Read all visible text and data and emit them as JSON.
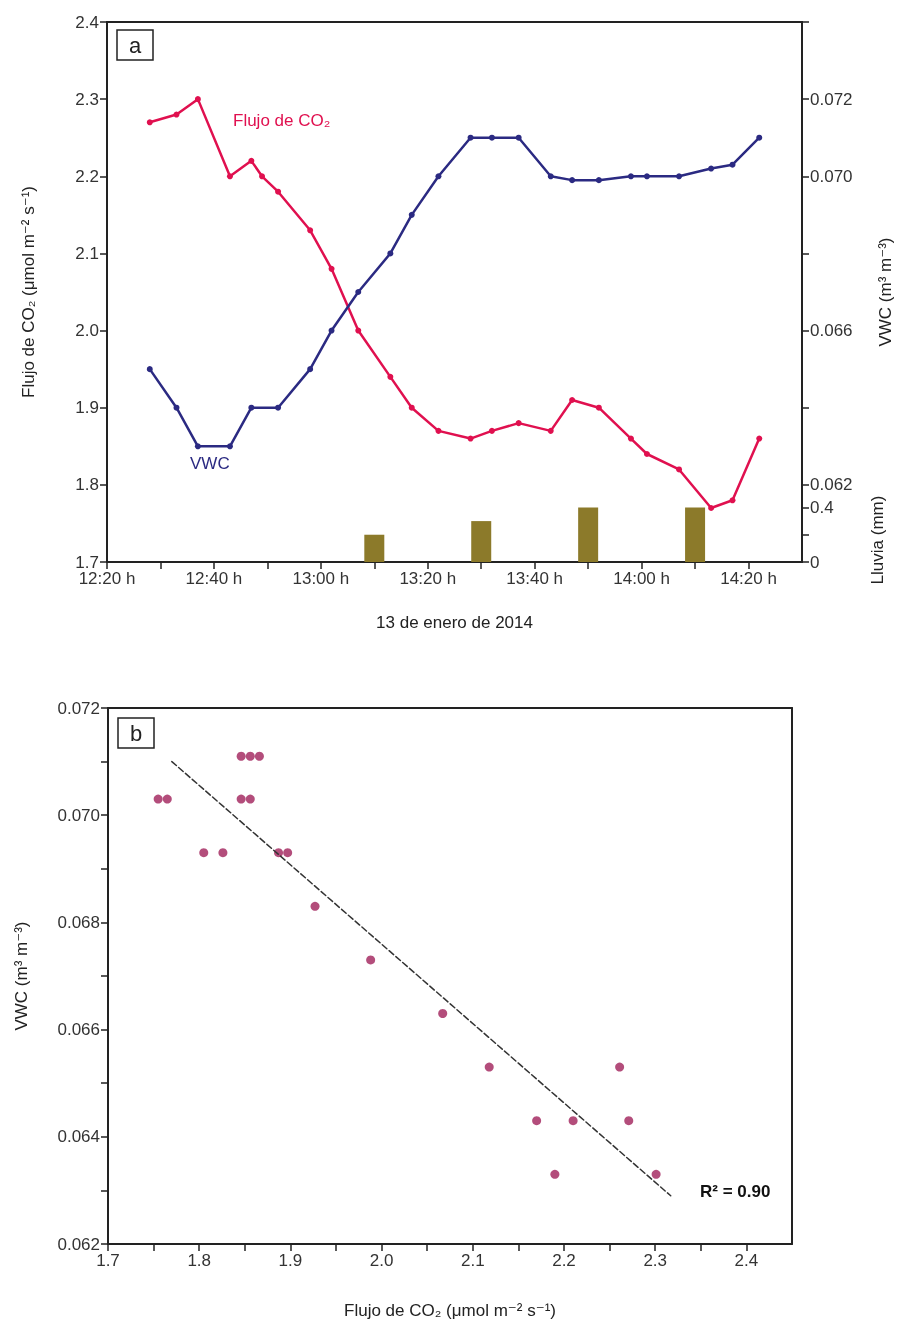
{
  "chart_data": [
    {
      "type": "line",
      "xlabel": "13 de enero de 2014",
      "ylabel": "Flujo de CO₂ (μmol m⁻² s⁻¹)",
      "y2label": "VWC (m³ m⁻³)",
      "y3label": "Lluvia (mm)",
      "annotations": [
        "a"
      ],
      "marker": "circle",
      "xlim": [
        "2014-01-13T12:20",
        "2014-01-13T14:30"
      ],
      "xticks": [
        {
          "value": "2014-01-13T12:20",
          "label": "12:20 h"
        },
        {
          "value": "2014-01-13T12:30",
          "label": null
        },
        {
          "value": "2014-01-13T12:40",
          "label": "12:40 h"
        },
        {
          "value": "2014-01-13T12:50",
          "label": null
        },
        {
          "value": "2014-01-13T13:00",
          "label": "13:00 h"
        },
        {
          "value": "2014-01-13T13:10",
          "label": null
        },
        {
          "value": "2014-01-13T13:20",
          "label": "13:20 h"
        },
        {
          "value": "2014-01-13T13:30",
          "label": null
        },
        {
          "value": "2014-01-13T13:40",
          "label": "13:40 h"
        },
        {
          "value": "2014-01-13T13:50",
          "label": null
        },
        {
          "value": "2014-01-13T14:00",
          "label": "14:00 h"
        },
        {
          "value": "2014-01-13T14:10",
          "label": null
        },
        {
          "value": "2014-01-13T14:20",
          "label": "14:20 h"
        }
      ],
      "ylim": [
        1.7,
        2.4
      ],
      "yticks": [
        1.7,
        1.8,
        1.9,
        {
          "value": 2,
          "label": "2.0"
        },
        2.1,
        2.2,
        2.3,
        2.4
      ],
      "y2lim": [
        0.06,
        0.074
      ],
      "y2ticks": [
        0.062,
        {
          "value": 0.064,
          "label": null
        },
        0.066,
        {
          "value": 0.068,
          "label": null
        },
        {
          "value": 0.07,
          "label": "0.070"
        },
        0.072,
        {
          "value": 0.074,
          "label": null
        }
      ],
      "y3lim": [
        0,
        3.96
      ],
      "y3ticks": [
        0,
        {
          "value": 0.2,
          "label": null
        },
        0.4
      ],
      "series": [
        {
          "name": "Flujo de CO₂",
          "color": "#e0104f",
          "x": [
            "2014-01-13T12:28",
            "2014-01-13T12:33",
            "2014-01-13T12:37",
            "2014-01-13T12:43",
            "2014-01-13T12:47",
            "2014-01-13T12:49",
            "2014-01-13T12:52",
            "2014-01-13T12:58",
            "2014-01-13T13:02",
            "2014-01-13T13:07",
            "2014-01-13T13:13",
            "2014-01-13T13:17",
            "2014-01-13T13:22",
            "2014-01-13T13:28",
            "2014-01-13T13:32",
            "2014-01-13T13:37",
            "2014-01-13T13:43",
            "2014-01-13T13:47",
            "2014-01-13T13:52",
            "2014-01-13T13:58",
            "2014-01-13T14:01",
            "2014-01-13T14:07",
            "2014-01-13T14:13",
            "2014-01-13T14:17",
            "2014-01-13T14:22"
          ],
          "values": [
            2.27,
            2.28,
            2.3,
            2.2,
            2.22,
            2.2,
            2.18,
            2.13,
            2.08,
            2.0,
            1.94,
            1.9,
            1.87,
            1.86,
            1.87,
            1.88,
            1.87,
            1.91,
            1.9,
            1.86,
            1.84,
            1.82,
            1.77,
            1.78,
            1.86
          ]
        },
        {
          "name": "VWC",
          "axis": "y2",
          "color": "#2b2a82",
          "x": [
            "2014-01-13T12:28",
            "2014-01-13T12:33",
            "2014-01-13T12:37",
            "2014-01-13T12:43",
            "2014-01-13T12:47",
            "2014-01-13T12:52",
            "2014-01-13T12:58",
            "2014-01-13T13:02",
            "2014-01-13T13:07",
            "2014-01-13T13:13",
            "2014-01-13T13:17",
            "2014-01-13T13:22",
            "2014-01-13T13:28",
            "2014-01-13T13:32",
            "2014-01-13T13:37",
            "2014-01-13T13:43",
            "2014-01-13T13:47",
            "2014-01-13T13:52",
            "2014-01-13T13:58",
            "2014-01-13T14:01",
            "2014-01-13T14:07",
            "2014-01-13T14:13",
            "2014-01-13T14:17",
            "2014-01-13T14:22"
          ],
          "values": [
            0.065,
            0.064,
            0.063,
            0.063,
            0.064,
            0.064,
            0.065,
            0.066,
            0.067,
            0.068,
            0.069,
            0.07,
            0.071,
            0.071,
            0.071,
            0.07,
            0.0699,
            0.0699,
            0.07,
            0.07,
            0.07,
            0.0702,
            0.0703,
            0.071
          ]
        },
        {
          "type": "bar",
          "axis": "y3",
          "color": "#8c7a2a",
          "x": [
            "2014-01-13T13:10",
            "2014-01-13T13:30",
            "2014-01-13T13:50",
            "2014-01-13T14:10"
          ],
          "values": [
            0.2,
            0.3,
            0.4,
            0.4
          ]
        }
      ]
    },
    {
      "type": "scatter",
      "xlabel": "Flujo de CO₂ (μmol m⁻² s⁻¹)",
      "ylabel": "VWC (m³ m⁻³)",
      "annotations": [
        "b",
        "R² = 0.90"
      ],
      "marker": "circle",
      "xlim": [
        1.7,
        2.45
      ],
      "xticks": [
        1.7,
        {
          "value": 1.75,
          "label": null
        },
        1.8,
        {
          "value": 1.85,
          "label": null
        },
        1.9,
        {
          "value": 1.95,
          "label": null
        },
        {
          "value": 2,
          "label": "2.0"
        },
        {
          "value": 2.05,
          "label": null
        },
        2.1,
        {
          "value": 2.15,
          "label": null
        },
        2.2,
        {
          "value": 2.25,
          "label": null
        },
        2.3,
        {
          "value": 2.35,
          "label": null
        },
        2.4
      ],
      "ylim": [
        0.062,
        0.072
      ],
      "yticks": [
        0.062,
        {
          "value": 0.063,
          "label": null
        },
        0.064,
        {
          "value": 0.065,
          "label": null
        },
        0.066,
        {
          "value": 0.067,
          "label": null
        },
        0.068,
        {
          "value": 0.069,
          "label": null
        },
        {
          "value": 0.07,
          "label": "0.070"
        },
        {
          "value": 0.071,
          "label": null
        },
        0.072
      ],
      "series": [
        {
          "color": "#a0205a",
          "x": [
            1.846,
            1.856,
            1.866,
            1.755,
            1.765,
            1.846,
            1.856,
            1.805,
            1.826,
            1.887,
            1.897,
            1.927,
            1.988,
            2.067,
            2.118,
            2.261,
            2.17,
            2.21,
            2.271,
            2.19,
            2.301
          ],
          "values": [
            0.0711,
            0.0711,
            0.0711,
            0.0703,
            0.0703,
            0.0703,
            0.0703,
            0.0693,
            0.0693,
            0.0693,
            0.0693,
            0.0683,
            0.0673,
            0.0663,
            0.0653,
            0.0653,
            0.0643,
            0.0643,
            0.0643,
            0.0633,
            0.0633
          ]
        },
        {
          "type": "line",
          "color": "#333333",
          "line_style": "dashed",
          "marker": "none",
          "x": [
            1.77,
            2.317
          ],
          "values": [
            0.071,
            0.0629
          ]
        }
      ]
    }
  ]
}
